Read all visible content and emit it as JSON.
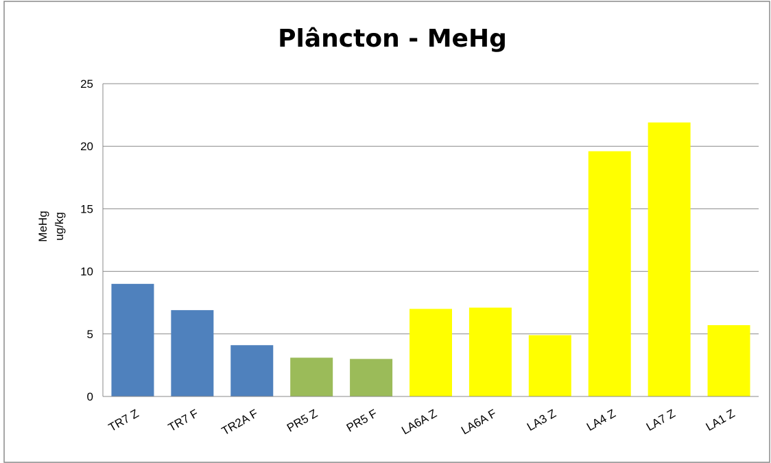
{
  "chart_data": {
    "type": "bar",
    "title": "Plâncton - MeHg",
    "ylabel": [
      "MeHg",
      "ug/kg"
    ],
    "categories": [
      "TR7 Z",
      "TR7 F",
      "TR2A F",
      "PR5 Z",
      "PR5 F",
      "LA6A Z",
      "LA6A F",
      "LA3 Z",
      "LA4 Z",
      "LA7 Z",
      "LA1 Z"
    ],
    "values": [
      9.0,
      6.9,
      4.1,
      3.1,
      3.0,
      7.0,
      7.1,
      4.9,
      19.6,
      21.9,
      5.7
    ],
    "colors": [
      "#4f81bd",
      "#4f81bd",
      "#4f81bd",
      "#9bbb59",
      "#9bbb59",
      "#ffff00",
      "#ffff00",
      "#ffff00",
      "#ffff00",
      "#ffff00",
      "#ffff00"
    ],
    "ylim": [
      0,
      25
    ],
    "yticks": [
      0,
      5,
      10,
      15,
      20,
      25
    ],
    "grid": true
  }
}
